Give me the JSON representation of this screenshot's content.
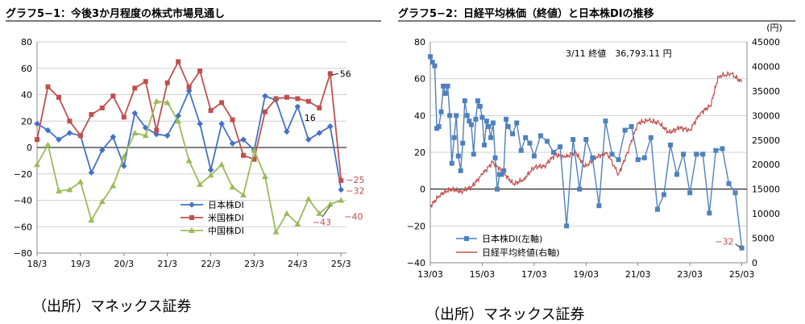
{
  "charts": {
    "left": {
      "title": "グラフ5−1：今後3か月程度の株式市場見通し",
      "source": "（出所）マネックス証券",
      "chart_data": {
        "type": "line",
        "title": "今後3か月程度の株式市場見通し",
        "ylim": [
          -80,
          80
        ],
        "yticks": [
          -80,
          -60,
          -40,
          -20,
          0,
          20,
          40,
          60,
          80
        ],
        "xlim": [
          0,
          28.5
        ],
        "xticks": [
          {
            "pos": 0,
            "label": "18/3"
          },
          {
            "pos": 4,
            "label": "19/3"
          },
          {
            "pos": 8,
            "label": "20/3"
          },
          {
            "pos": 12,
            "label": "21/3"
          },
          {
            "pos": 16,
            "label": "22/3"
          },
          {
            "pos": 20,
            "label": "23/3"
          },
          {
            "pos": 24,
            "label": "24/3"
          },
          {
            "pos": 28,
            "label": "25/3"
          }
        ],
        "legend": {
          "placement": "bottom-center"
        },
        "series": [
          {
            "name": "日本株DI",
            "color": "#4472c4",
            "marker": "diamond",
            "x": [
              0,
              1,
              2,
              3,
              4,
              5,
              6,
              7,
              8,
              9,
              10,
              11,
              12,
              13,
              14,
              15,
              16,
              17,
              18,
              19,
              20,
              21,
              22,
              23,
              24,
              25,
              26,
              27,
              28
            ],
            "values": [
              18,
              13,
              6,
              11,
              9,
              -19,
              -2,
              8,
              -14,
              26,
              15,
              10,
              9,
              24,
              43,
              18,
              -17,
              18,
              3,
              6,
              -2,
              39,
              36,
              12,
              31,
              6,
              11,
              16,
              -32
            ]
          },
          {
            "name": "米国株DI",
            "color": "#c0504d",
            "marker": "square",
            "x": [
              0,
              1,
              2,
              3,
              4,
              5,
              6,
              7,
              8,
              9,
              10,
              11,
              12,
              13,
              14,
              15,
              16,
              17,
              18,
              19,
              20,
              21,
              22,
              23,
              24,
              25,
              26,
              27,
              28
            ],
            "values": [
              6,
              46,
              38,
              20,
              9,
              25,
              30,
              39,
              23,
              45,
              50,
              13,
              49,
              65,
              46,
              58,
              28,
              34,
              21,
              -6,
              -9,
              27,
              37,
              38,
              37,
              35,
              30,
              56,
              -25
            ]
          },
          {
            "name": "中国株DI",
            "color": "#9bbb59",
            "marker": "triangle",
            "x": [
              0,
              1,
              2,
              3,
              4,
              5,
              6,
              7,
              8,
              9,
              10,
              11,
              12,
              13,
              14,
              15,
              16,
              17,
              18,
              19,
              20,
              21,
              22,
              23,
              24,
              25,
              26,
              27,
              28
            ],
            "values": [
              -13,
              2,
              -33,
              -32,
              -26,
              -55,
              -41,
              -29,
              -7,
              11,
              9,
              35,
              34,
              20,
              -10,
              -28,
              -21,
              -13,
              -30,
              -36,
              -2,
              -22,
              -64,
              -50,
              -58,
              -39,
              -50,
              -43,
              -40
            ]
          }
        ],
        "annotations": [
          {
            "label": "56",
            "x": 27,
            "y": 56
          },
          {
            "label": "16",
            "x": 27,
            "y": 16
          },
          {
            "label": "-25",
            "x": 28,
            "y": -25
          },
          {
            "label": "-32",
            "x": 28,
            "y": -32
          },
          {
            "label": "-43",
            "x": 27,
            "y": -43
          },
          {
            "label": "-40",
            "x": 28,
            "y": -40
          }
        ]
      }
    },
    "right": {
      "title": "グラフ5−2：日経平均株価（終値）と日本株DIの推移",
      "source": "（出所）マネックス証券",
      "chart_data": {
        "type": "line",
        "title": "日経平均株価（終値）と日本株DIの推移",
        "note": "3/11 終値　36,793.11 円",
        "y_left": {
          "min": -40,
          "max": 80,
          "ticks": [
            -40,
            -20,
            0,
            20,
            40,
            60,
            80
          ]
        },
        "y_right": {
          "min": 0,
          "max": 45000,
          "unit": "(円)",
          "ticks": [
            0,
            5000,
            10000,
            15000,
            20000,
            25000,
            30000,
            35000,
            40000,
            45000
          ]
        },
        "xlim": [
          2013.0,
          2025.2
        ],
        "xticks": [
          {
            "pos": 2013,
            "label": "13/03"
          },
          {
            "pos": 2015,
            "label": "15/03"
          },
          {
            "pos": 2017,
            "label": "17/03"
          },
          {
            "pos": 2019,
            "label": "19/03"
          },
          {
            "pos": 2021,
            "label": "21/03"
          },
          {
            "pos": 2023,
            "label": "23/03"
          },
          {
            "pos": 2025,
            "label": "25/03"
          }
        ],
        "legend": {
          "placement": "bottom-left"
        },
        "series": [
          {
            "name": "日本株DI(左軸)",
            "axis": "left",
            "color": "#4f81bd",
            "marker": "square",
            "x": [
              2013.0,
              2013.08,
              2013.17,
              2013.25,
              2013.33,
              2013.42,
              2013.5,
              2013.58,
              2013.67,
              2013.75,
              2013.83,
              2013.92,
              2014.0,
              2014.08,
              2014.17,
              2014.25,
              2014.33,
              2014.42,
              2014.5,
              2014.58,
              2014.67,
              2014.75,
              2014.83,
              2014.92,
              2015.0,
              2015.08,
              2015.17,
              2015.25,
              2015.33,
              2015.42,
              2015.5,
              2015.58,
              2015.67,
              2015.75,
              2015.83,
              2015.92,
              2016.0,
              2016.17,
              2016.33,
              2016.5,
              2016.67,
              2016.83,
              2017.0,
              2017.25,
              2017.5,
              2017.75,
              2018.0,
              2018.25,
              2018.5,
              2018.75,
              2019.0,
              2019.25,
              2019.5,
              2019.75,
              2020.0,
              2020.25,
              2020.5,
              2020.75,
              2021.0,
              2021.25,
              2021.5,
              2021.75,
              2022.0,
              2022.25,
              2022.5,
              2022.75,
              2023.0,
              2023.25,
              2023.5,
              2023.75,
              2024.0,
              2024.25,
              2024.5,
              2024.75,
              2025.0
            ],
            "values": [
              72,
              69,
              67,
              33,
              34,
              42,
              56,
              52,
              56,
              40,
              14,
              28,
              40,
              18,
              10,
              25,
              48,
              40,
              37,
              35,
              19,
              38,
              48,
              45,
              39,
              24,
              37,
              34,
              28,
              36,
              17,
              0,
              8,
              8,
              10,
              38,
              34,
              30,
              36,
              21,
              28,
              25,
              18,
              29,
              26,
              20,
              23,
              -20,
              27,
              0,
              27,
              17,
              -9,
              37,
              19,
              16,
              32,
              34,
              16,
              17,
              28,
              -11,
              -3,
              24,
              8,
              19,
              -2,
              19,
              19,
              -13,
              21,
              22,
              3,
              -2,
              -32
            ]
          },
          {
            "name": "日経平均終値(右軸)",
            "axis": "right",
            "color": "#c0504d",
            "marker": "none",
            "x": [
              2013.0,
              2013.4,
              2013.8,
              2014.2,
              2014.6,
              2015.0,
              2015.4,
              2015.8,
              2016.2,
              2016.6,
              2017.0,
              2017.4,
              2017.8,
              2018.2,
              2018.6,
              2018.95,
              2019.4,
              2019.8,
              2020.25,
              2020.6,
              2021.0,
              2021.4,
              2021.8,
              2022.2,
              2022.6,
              2023.0,
              2023.4,
              2023.8,
              2024.1,
              2024.6,
              2025.0
            ],
            "values": [
              11500,
              14000,
              15000,
              14500,
              15500,
              18000,
              20500,
              18500,
              16000,
              17000,
              19500,
              19700,
              22000,
              21500,
              22500,
              19500,
              21500,
              22500,
              18000,
              22500,
              28500,
              29000,
              28500,
              26500,
              27500,
              27000,
              30500,
              32000,
              38000,
              38500,
              36800
            ]
          }
        ],
        "annotations": [
          {
            "label": "-32",
            "x": 2025.0,
            "y": -32
          }
        ]
      }
    }
  }
}
